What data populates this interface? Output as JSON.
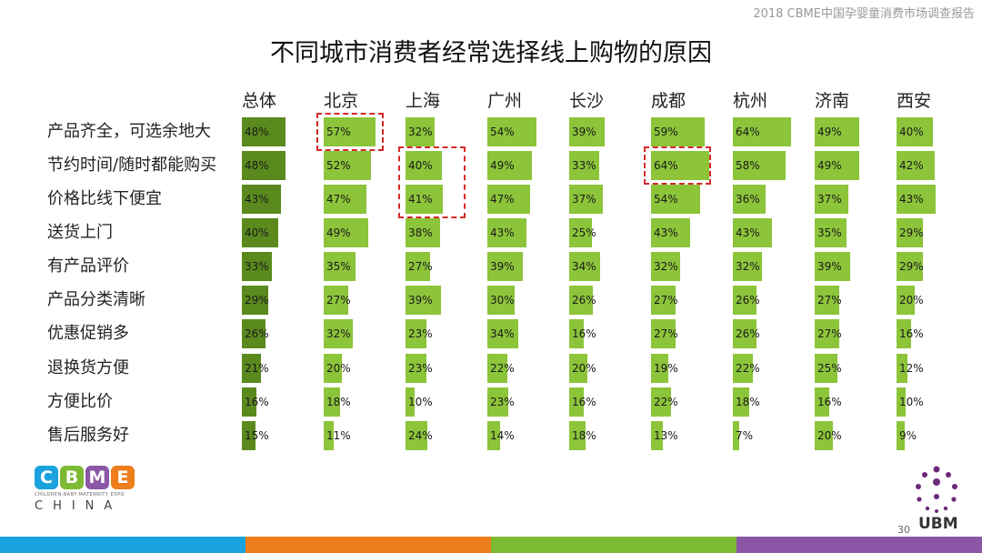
{
  "header": {
    "report_tag": "2018 CBME中国孕婴童消费市场调查报告",
    "title": "不同城市消费者经常选择线上购物的原因"
  },
  "colors": {
    "overall_bar": "#5a8a1e",
    "city_bar": "#8cc43a",
    "highlight": "#d42a2a",
    "footer": [
      "#1aa2df",
      "#ee7d1b",
      "#7cba33",
      "#8a56a5"
    ]
  },
  "chart_data": {
    "type": "bar",
    "columns": [
      "总体",
      "北京",
      "上海",
      "广州",
      "长沙",
      "成都",
      "杭州",
      "济南",
      "西安"
    ],
    "categories": [
      "产品齐全，可选余地大",
      "节约时间/随时都能购买",
      "价格比线下便宜",
      "送货上门",
      "有产品评价",
      "产品分类清晰",
      "优惠促销多",
      "退换货方便",
      "方便比价",
      "售后服务好"
    ],
    "values": [
      [
        48,
        57,
        32,
        54,
        39,
        59,
        64,
        49,
        40
      ],
      [
        48,
        52,
        40,
        49,
        33,
        64,
        58,
        49,
        42
      ],
      [
        43,
        47,
        41,
        47,
        37,
        54,
        36,
        37,
        43
      ],
      [
        40,
        49,
        38,
        43,
        25,
        43,
        43,
        35,
        29
      ],
      [
        33,
        35,
        27,
        39,
        34,
        32,
        32,
        39,
        29
      ],
      [
        29,
        27,
        39,
        30,
        26,
        27,
        26,
        27,
        20
      ],
      [
        26,
        32,
        23,
        34,
        16,
        27,
        26,
        27,
        16
      ],
      [
        21,
        20,
        23,
        22,
        20,
        19,
        22,
        25,
        12
      ],
      [
        16,
        18,
        10,
        23,
        16,
        22,
        18,
        16,
        10
      ],
      [
        15,
        11,
        24,
        14,
        18,
        13,
        7,
        20,
        9
      ]
    ],
    "value_labels": [
      [
        "48%",
        "57%",
        "32%",
        "54%",
        "39%",
        "59%",
        "64%",
        "49%",
        "40%"
      ],
      [
        "48%",
        "52%",
        "40%",
        "49%",
        "33%",
        "64%",
        "58%",
        "49%",
        "42%"
      ],
      [
        "43%",
        "47%",
        "41%",
        "47%",
        "37%",
        "54%",
        "36%",
        "37%",
        "43%"
      ],
      [
        "40%",
        "49%",
        "38%",
        "43%",
        "25%",
        "43%",
        "43%",
        "35%",
        "29%"
      ],
      [
        "33%",
        "35%",
        "27%",
        "39%",
        "34%",
        "32%",
        "32%",
        "39%",
        "29%"
      ],
      [
        "29%",
        "27%",
        "39%",
        "30%",
        "26%",
        "27%",
        "26%",
        "27%",
        "20%"
      ],
      [
        "26%",
        "32%",
        "23%",
        "34%",
        "16%",
        "27%",
        "26%",
        "27%",
        "16%"
      ],
      [
        "21%",
        "20%",
        "23%",
        "22%",
        "20%",
        "19%",
        "22%",
        "25%",
        "12%"
      ],
      [
        "16%",
        "18%",
        "10%",
        "23%",
        "16%",
        "22%",
        "18%",
        "16%",
        "10%"
      ],
      [
        "15%",
        "11%",
        "24%",
        "14%",
        "18%",
        "13%",
        "7%",
        "20%",
        "9%"
      ]
    ],
    "highlights": [
      {
        "column": 1,
        "rows": [
          0
        ]
      },
      {
        "column": 2,
        "rows": [
          1,
          2
        ]
      },
      {
        "column": 5,
        "rows": [
          1
        ]
      }
    ]
  },
  "logos": {
    "cbme_letters": [
      "C",
      "B",
      "M",
      "E"
    ],
    "cbme_colors": [
      "#1aa2df",
      "#7cba33",
      "#8a56a5",
      "#ee7d1b"
    ],
    "cbme_sub": "CHILDREN-BABY-MATERNITY EXPO",
    "cbme_china": "CHINA",
    "ubm_text": "UBM"
  },
  "footer": {
    "page_number": "30"
  }
}
